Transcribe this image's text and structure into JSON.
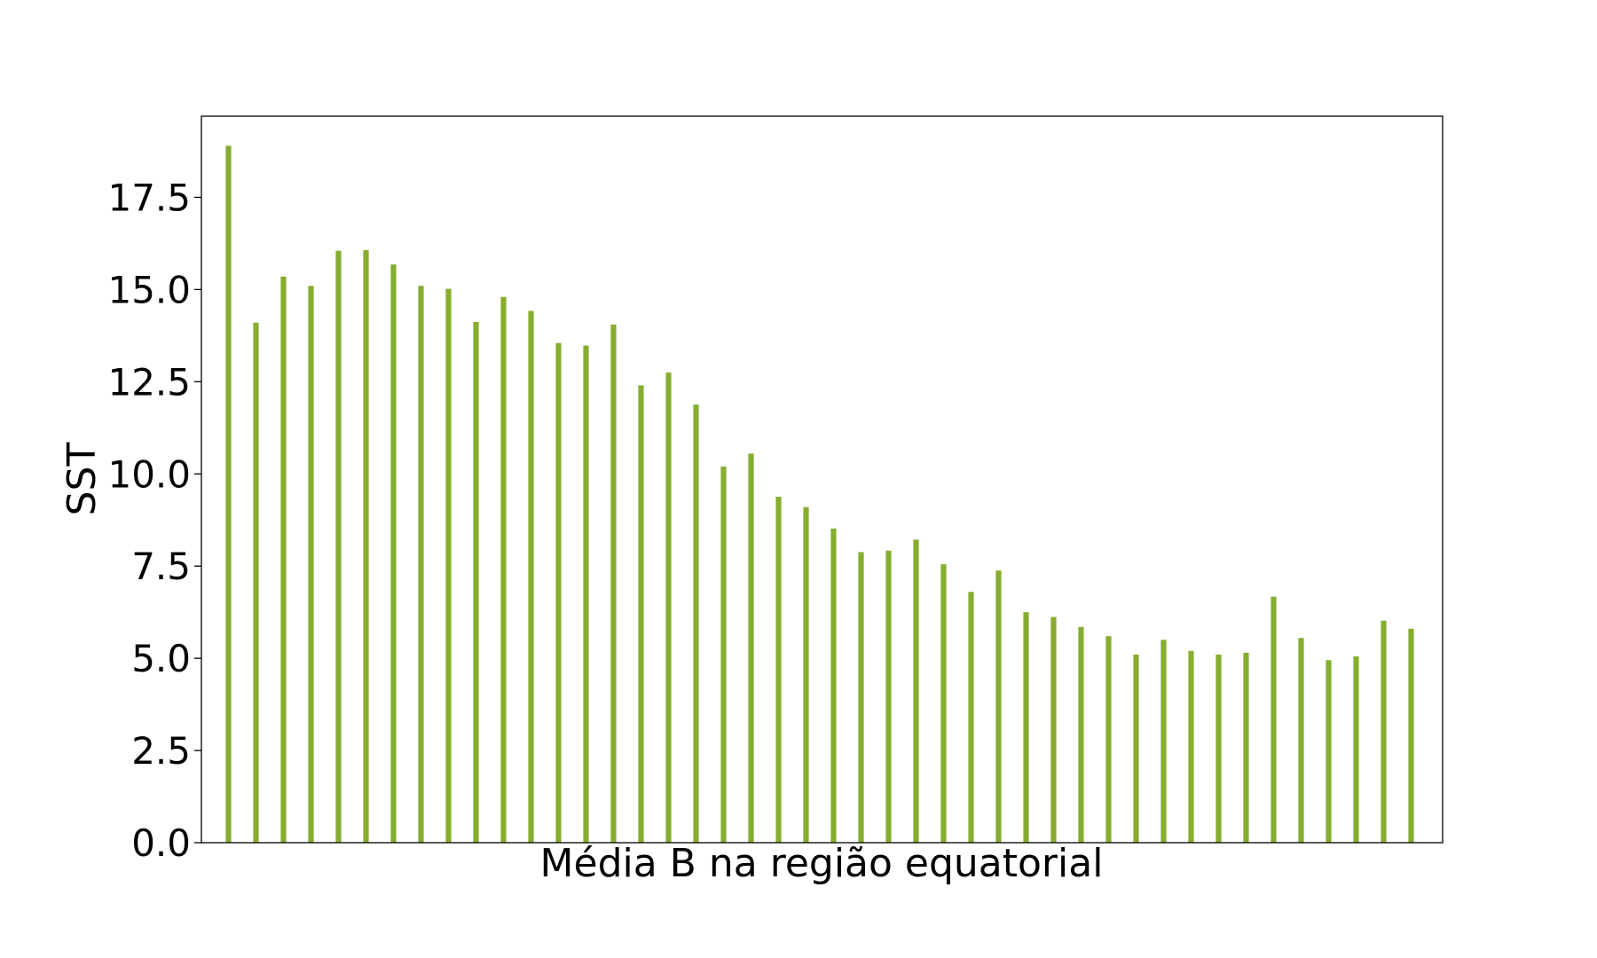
{
  "chart_data": {
    "type": "bar",
    "title": "",
    "xlabel": "Média B na região equatorial",
    "ylabel": "SST",
    "ylim": [
      0,
      19.7
    ],
    "yticks": [
      "0.0",
      "2.5",
      "5.0",
      "7.5",
      "10.0",
      "12.5",
      "15.0",
      "17.5"
    ],
    "grid": false,
    "legend": "none",
    "bar_color": "#86ad2f",
    "series": [
      {
        "values": [
          18.9,
          14.1,
          15.35,
          15.1,
          16.05,
          16.07,
          15.68,
          15.1,
          15.02,
          14.12,
          14.8,
          14.42,
          13.55,
          13.48,
          14.05,
          12.4,
          12.75,
          11.88,
          10.2,
          10.55,
          9.38,
          9.1,
          8.52,
          7.88,
          7.92,
          8.22,
          7.55,
          6.8,
          7.38,
          6.25,
          6.12,
          5.85,
          5.6,
          5.1,
          5.5,
          5.2,
          5.1,
          5.15,
          6.67,
          5.55,
          4.95,
          5.05,
          6.02,
          5.8
        ]
      }
    ]
  }
}
